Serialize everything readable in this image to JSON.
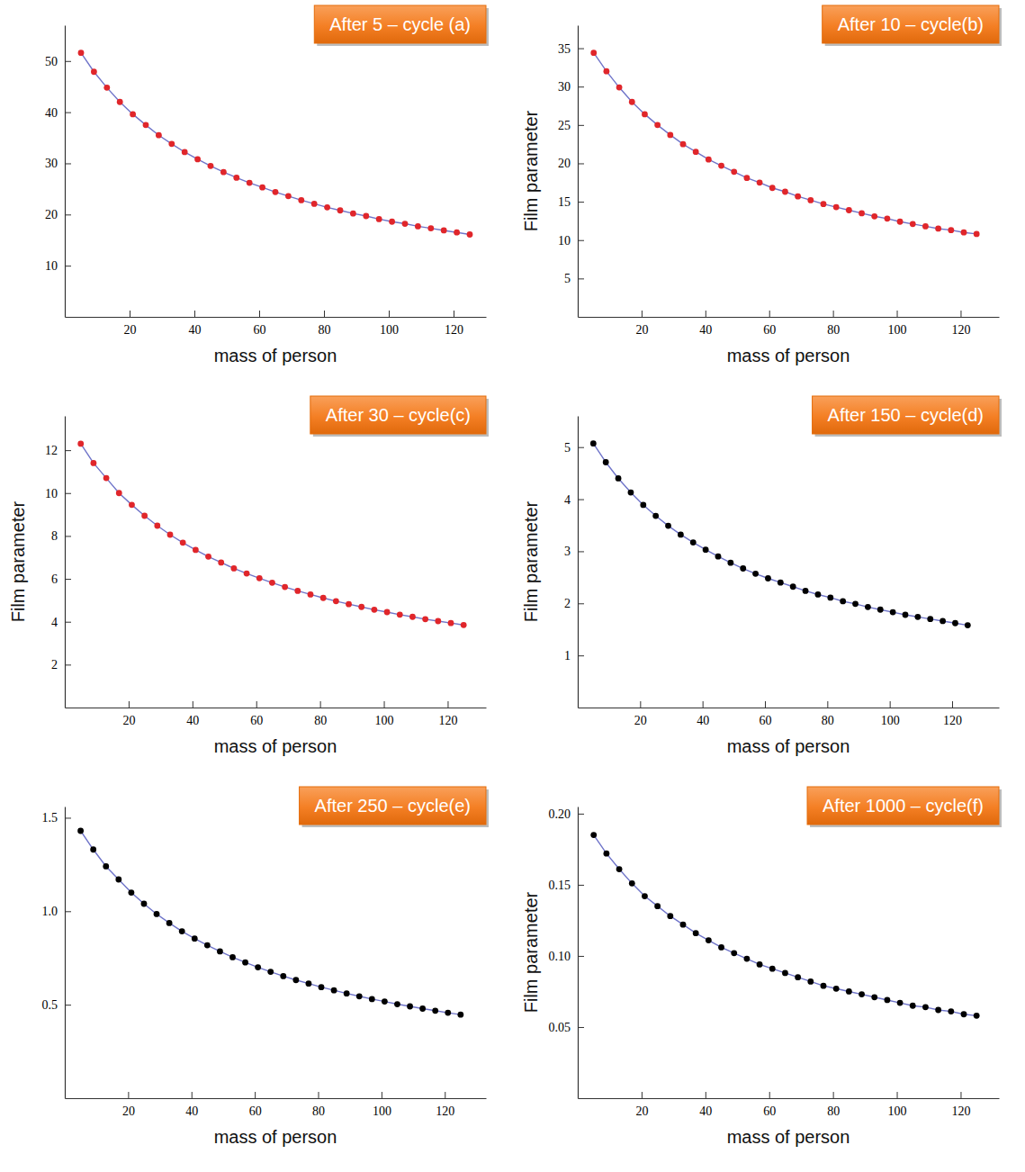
{
  "chart_data": [
    {
      "type": "line",
      "title": "After 5 – cycle (a)",
      "x_label": "mass of person",
      "x": [
        5,
        9,
        13,
        17,
        21,
        25,
        29,
        33,
        37,
        41,
        45,
        49,
        53,
        57,
        61,
        65,
        69,
        73,
        77,
        81,
        85,
        89,
        93,
        97,
        101,
        105,
        109,
        113,
        117,
        121,
        125
      ],
      "series": [
        {
          "color": "#6f74c9",
          "marker": "circle",
          "line_style": "solid",
          "values": [
            51.6,
            47.9,
            44.8,
            42.0,
            39.6,
            37.5,
            35.5,
            33.8,
            32.2,
            30.8,
            29.5,
            28.3,
            27.2,
            26.2,
            25.3,
            24.4,
            23.6,
            22.8,
            22.1,
            21.4,
            20.8,
            20.2,
            19.7,
            19.1,
            18.6,
            18.2,
            17.7,
            17.3,
            16.9,
            16.5,
            16.1
          ],
          "colors": [
            "#e0262b",
            "#e0262b",
            "#e0262b",
            "#e0262b",
            "#e0262b",
            "#e0262b",
            "#e0262b",
            "#e0262b",
            "#e0262b",
            "#e0262b",
            "#e0262b",
            "#e0262b",
            "#e0262b",
            "#e0262b",
            "#e0262b",
            "#e0262b",
            "#e0262b",
            "#e0262b",
            "#e0262b",
            "#e0262b",
            "#e0262b",
            "#e0262b",
            "#e0262b",
            "#e0262b",
            "#e0262b",
            "#e0262b",
            "#e0262b",
            "#e0262b",
            "#e0262b",
            "#e0262b",
            "#e0262b"
          ]
        }
      ],
      "xlim": [
        0,
        130
      ],
      "xticks": [
        20,
        40,
        60,
        80,
        100,
        120
      ],
      "ylim": [
        0,
        57
      ],
      "yticks": [
        10,
        20,
        30,
        40,
        50
      ],
      "grid": false
    },
    {
      "type": "line",
      "title": "After 10 – cycle(b)",
      "x_label": "mass of person",
      "y_label": "Film parameter",
      "x": [
        5,
        9,
        13,
        17,
        21,
        25,
        29,
        33,
        37,
        41,
        45,
        49,
        53,
        57,
        61,
        65,
        69,
        73,
        77,
        81,
        85,
        89,
        93,
        97,
        101,
        105,
        109,
        113,
        117,
        121,
        125
      ],
      "series": [
        {
          "color": "#6f74c9",
          "marker": "circle",
          "line_style": "solid",
          "values": [
            34.4,
            32.0,
            29.9,
            28.0,
            26.4,
            25.0,
            23.7,
            22.5,
            21.5,
            20.5,
            19.7,
            18.9,
            18.1,
            17.5,
            16.8,
            16.3,
            15.7,
            15.2,
            14.7,
            14.3,
            13.9,
            13.5,
            13.1,
            12.8,
            12.4,
            12.1,
            11.8,
            11.5,
            11.3,
            11.0,
            10.8
          ],
          "colors": [
            "#e0262b",
            "#e0262b",
            "#e0262b",
            "#e0262b",
            "#e0262b",
            "#e0262b",
            "#e0262b",
            "#e0262b",
            "#e0262b",
            "#e0262b",
            "#e0262b",
            "#e0262b",
            "#e0262b",
            "#e0262b",
            "#e0262b",
            "#e0262b",
            "#e0262b",
            "#e0262b",
            "#e0262b",
            "#e0262b",
            "#e0262b",
            "#e0262b",
            "#e0262b",
            "#e0262b",
            "#e0262b",
            "#e0262b",
            "#e0262b",
            "#e0262b",
            "#e0262b",
            "#e0262b",
            "#e0262b"
          ]
        }
      ],
      "xlim": [
        0,
        132
      ],
      "xticks": [
        20,
        40,
        60,
        80,
        100,
        120
      ],
      "ylim": [
        0,
        38
      ],
      "yticks": [
        5,
        10,
        15,
        20,
        25,
        30,
        35
      ],
      "grid": false
    },
    {
      "type": "line",
      "title": "After 30 – cycle(c)",
      "x_label": "mass of person",
      "y_label": "Film parameter",
      "x": [
        5,
        9,
        13,
        17,
        21,
        25,
        29,
        33,
        37,
        41,
        45,
        49,
        53,
        57,
        61,
        65,
        69,
        73,
        77,
        81,
        85,
        89,
        93,
        97,
        101,
        105,
        109,
        113,
        117,
        121,
        125
      ],
      "series": [
        {
          "color": "#6f74c9",
          "marker": "circle",
          "line_style": "solid",
          "values": [
            12.3,
            11.4,
            10.7,
            10.0,
            9.45,
            8.94,
            8.48,
            8.06,
            7.69,
            7.35,
            7.04,
            6.76,
            6.49,
            6.25,
            6.03,
            5.82,
            5.62,
            5.44,
            5.27,
            5.11,
            4.96,
            4.82,
            4.69,
            4.56,
            4.45,
            4.33,
            4.23,
            4.12,
            4.03,
            3.94,
            3.85
          ],
          "colors": [
            "#e0262b",
            "#e0262b",
            "#e0262b",
            "#e0262b",
            "#e0262b",
            "#e0262b",
            "#e0262b",
            "#e0262b",
            "#e0262b",
            "#e0262b",
            "#e0262b",
            "#e0262b",
            "#e0262b",
            "#e0262b",
            "#e0262b",
            "#e0262b",
            "#e0262b",
            "#e0262b",
            "#e0262b",
            "#e0262b",
            "#e0262b",
            "#e0262b",
            "#e0262b",
            "#e0262b",
            "#e0262b",
            "#e0262b",
            "#e0262b",
            "#e0262b",
            "#e0262b",
            "#e0262b",
            "#e0262b"
          ]
        }
      ],
      "xlim": [
        0,
        132
      ],
      "xticks": [
        20,
        40,
        60,
        80,
        100,
        120
      ],
      "ylim": [
        0,
        13.6
      ],
      "yticks": [
        2,
        4,
        6,
        8,
        10,
        12
      ],
      "grid": false
    },
    {
      "type": "line",
      "title": "After 150 – cycle(d)",
      "x_label": "mass of person",
      "y_label": "Film parameter",
      "x": [
        5,
        9,
        13,
        17,
        21,
        25,
        29,
        33,
        37,
        41,
        45,
        49,
        53,
        57,
        61,
        65,
        69,
        73,
        77,
        81,
        85,
        89,
        93,
        97,
        101,
        105,
        109,
        113,
        117,
        121,
        125
      ],
      "series": [
        {
          "color": "#6f74c9",
          "marker": "circle",
          "line_style": "solid",
          "values": [
            5.07,
            4.71,
            4.4,
            4.13,
            3.89,
            3.68,
            3.49,
            3.32,
            3.17,
            3.03,
            2.9,
            2.78,
            2.67,
            2.57,
            2.48,
            2.4,
            2.32,
            2.24,
            2.17,
            2.11,
            2.04,
            1.99,
            1.93,
            1.88,
            1.83,
            1.78,
            1.74,
            1.7,
            1.66,
            1.62,
            1.58
          ],
          "colors": [
            "#000000",
            "#000000",
            "#000000",
            "#000000",
            "#000000",
            "#000000",
            "#000000",
            "#000000",
            "#000000",
            "#000000",
            "#000000",
            "#000000",
            "#000000",
            "#000000",
            "#000000",
            "#000000",
            "#000000",
            "#000000",
            "#000000",
            "#000000",
            "#000000",
            "#000000",
            "#000000",
            "#000000",
            "#000000",
            "#000000",
            "#000000",
            "#000000",
            "#000000",
            "#000000",
            "#000000"
          ]
        }
      ],
      "xlim": [
        0,
        135
      ],
      "xticks": [
        20,
        40,
        60,
        80,
        100,
        120
      ],
      "ylim": [
        0,
        5.6
      ],
      "yticks": [
        1,
        2,
        3,
        4,
        5
      ],
      "grid": false
    },
    {
      "type": "line",
      "title": "After 250 – cycle(e)",
      "x_label": "mass of person",
      "x": [
        5,
        9,
        13,
        17,
        21,
        25,
        29,
        33,
        37,
        41,
        45,
        49,
        53,
        57,
        61,
        65,
        69,
        73,
        77,
        81,
        85,
        89,
        93,
        97,
        101,
        105,
        109,
        113,
        117,
        121,
        125
      ],
      "series": [
        {
          "color": "#6f74c9",
          "marker": "circle",
          "line_style": "solid",
          "values": [
            1.43,
            1.33,
            1.24,
            1.17,
            1.1,
            1.04,
            0.985,
            0.937,
            0.893,
            0.854,
            0.818,
            0.785,
            0.754,
            0.726,
            0.7,
            0.676,
            0.653,
            0.632,
            0.613,
            0.594,
            0.577,
            0.56,
            0.545,
            0.53,
            0.517,
            0.503,
            0.491,
            0.479,
            0.468,
            0.457,
            0.447
          ],
          "colors": [
            "#000000",
            "#000000",
            "#000000",
            "#000000",
            "#000000",
            "#000000",
            "#000000",
            "#000000",
            "#000000",
            "#000000",
            "#000000",
            "#000000",
            "#000000",
            "#000000",
            "#000000",
            "#000000",
            "#000000",
            "#000000",
            "#000000",
            "#000000",
            "#000000",
            "#000000",
            "#000000",
            "#000000",
            "#000000",
            "#000000",
            "#000000",
            "#000000",
            "#000000",
            "#000000",
            "#000000"
          ]
        }
      ],
      "xlim": [
        0,
        133
      ],
      "xticks": [
        20,
        40,
        60,
        80,
        100,
        120
      ],
      "ylim": [
        0,
        1.56
      ],
      "yticks": [
        0.5,
        {
          "value": 1,
          "label": "1.0"
        },
        1.5
      ],
      "grid": false
    },
    {
      "type": "line",
      "title": "After 1000 – cycle(f)",
      "x_label": "mass of person",
      "y_label": "Film parameter",
      "x": [
        5,
        9,
        13,
        17,
        21,
        25,
        29,
        33,
        37,
        41,
        45,
        49,
        53,
        57,
        61,
        65,
        69,
        73,
        77,
        81,
        85,
        89,
        93,
        97,
        101,
        105,
        109,
        113,
        117,
        121,
        125
      ],
      "series": [
        {
          "color": "#6f74c9",
          "marker": "circle",
          "line_style": "solid",
          "values": [
            0.185,
            0.172,
            0.161,
            0.151,
            0.142,
            0.135,
            0.128,
            0.122,
            0.116,
            0.111,
            0.106,
            0.102,
            0.098,
            0.094,
            0.091,
            0.088,
            0.085,
            0.082,
            0.079,
            0.077,
            0.075,
            0.073,
            0.071,
            0.069,
            0.067,
            0.065,
            0.064,
            0.062,
            0.061,
            0.059,
            0.058
          ],
          "colors": [
            "#000000",
            "#000000",
            "#000000",
            "#000000",
            "#000000",
            "#000000",
            "#000000",
            "#000000",
            "#000000",
            "#000000",
            "#000000",
            "#000000",
            "#000000",
            "#000000",
            "#000000",
            "#000000",
            "#000000",
            "#000000",
            "#000000",
            "#000000",
            "#000000",
            "#000000",
            "#000000",
            "#000000",
            "#000000",
            "#000000",
            "#000000",
            "#000000",
            "#000000",
            "#000000",
            "#000000"
          ]
        }
      ],
      "xlim": [
        0,
        132
      ],
      "xticks": [
        20,
        40,
        60,
        80,
        100,
        120
      ],
      "ylim": [
        0,
        0.205
      ],
      "yticks": [
        0.05,
        {
          "value": 0.1,
          "label": "0.10"
        },
        0.15,
        {
          "value": 0.2,
          "label": "0.20"
        }
      ],
      "grid": false
    }
  ]
}
